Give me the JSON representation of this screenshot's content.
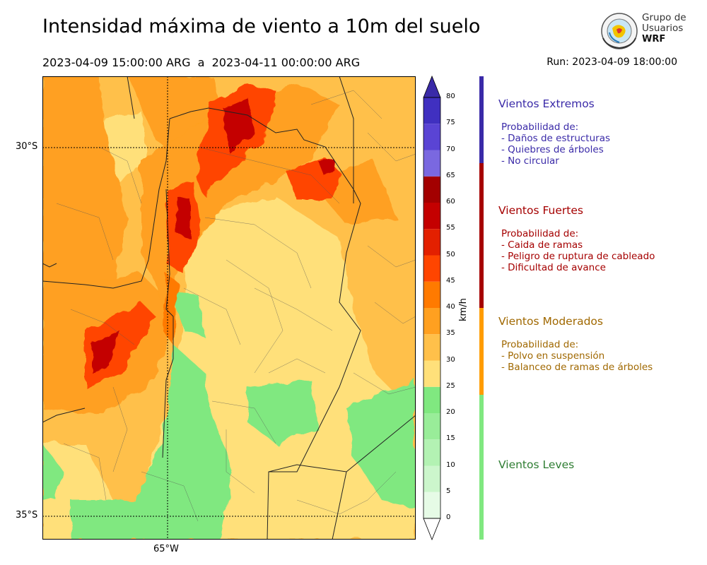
{
  "title": "Intensidad máxima de viento a 10m del suelo",
  "period": "2023-04-09 15:00:00 ARG  a  2023-04-11 00:00:00 ARG",
  "run": "Run: 2023-04-09 18:00:00",
  "logo": {
    "line1": "Grupo de",
    "line2": "Usuarios",
    "line3": "WRF"
  },
  "map": {
    "lat_labels": [
      "30°S",
      "35°S"
    ],
    "lon_labels": [
      "65°W"
    ]
  },
  "colorbar": {
    "unit": "km/h",
    "levels": [
      0,
      5,
      10,
      15,
      20,
      25,
      30,
      35,
      40,
      45,
      50,
      55,
      60,
      65,
      70,
      75,
      80
    ],
    "tick_labels": [
      "0",
      "5",
      "10",
      "15",
      "20",
      "25",
      "30",
      "35",
      "40",
      "45",
      "50",
      "55",
      "60",
      "65",
      "70",
      "75",
      "80"
    ],
    "colors": [
      "#e6fbe6",
      "#ccf6cc",
      "#b3f2b3",
      "#99ed99",
      "#80e880",
      "#ffe07a",
      "#ffc04a",
      "#ffa020",
      "#ff7a00",
      "#ff4500",
      "#e32000",
      "#c40000",
      "#a30000",
      "#7a68e0",
      "#5a44d4",
      "#4030c0"
    ],
    "extend_color": "#3a2aa8"
  },
  "categories": [
    {
      "title": "Vientos Extremos",
      "color": "#3a2aa8",
      "desc_title": "Probabilidad de:",
      "items": [
        "- Daños de estructuras",
        "- Quiebres de árboles",
        "- No circular"
      ]
    },
    {
      "title": "Vientos Fuertes",
      "color": "#a50000",
      "desc_title": "Probabilidad de:",
      "items": [
        "- Caida de ramas",
        "- Peligro de ruptura de cableado",
        "- Dificultad de avance"
      ]
    },
    {
      "title": "Vientos Moderados",
      "color": "#a06800",
      "desc_title": "Probabilidad de:",
      "items": [
        "- Polvo en suspensión",
        "- Balanceo de ramas de árboles"
      ]
    },
    {
      "title": "Vientos Leves",
      "color": "#2e7d32",
      "desc_title": "",
      "items": []
    }
  ],
  "band_colors": [
    "#3a2aa8",
    "#a50000",
    "#ff9c00",
    "#80e880"
  ]
}
